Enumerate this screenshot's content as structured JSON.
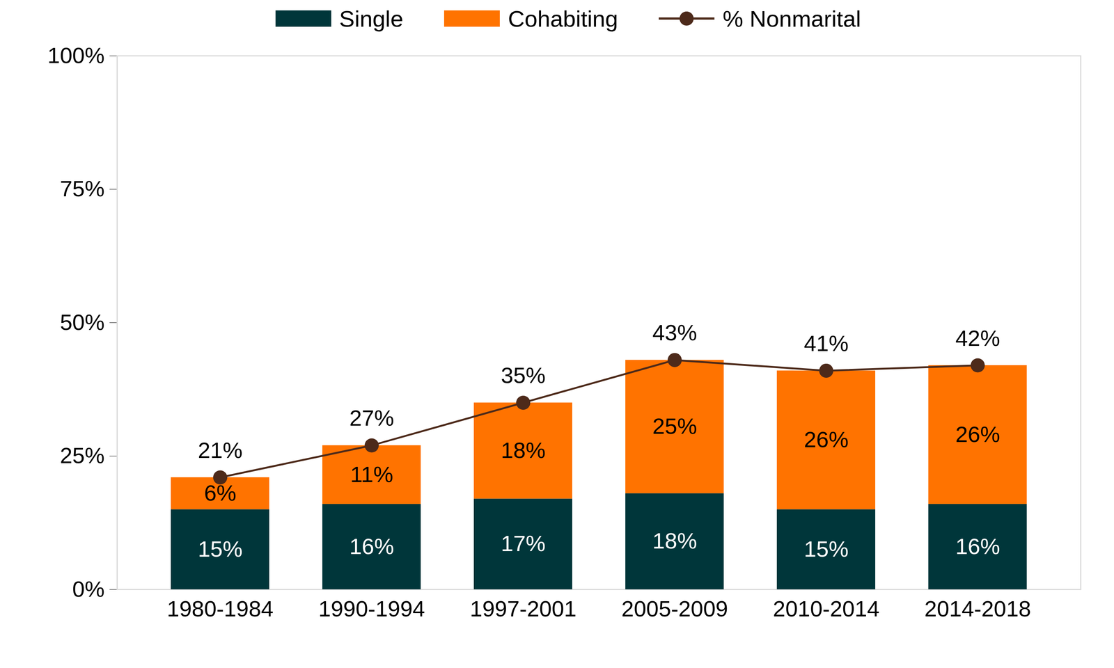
{
  "chart_data": {
    "type": "bar",
    "stacked": true,
    "data_labels": true,
    "legend": "top",
    "grid": false,
    "categories": [
      "1980-1984",
      "1990-1994",
      "1997-2001",
      "2005-2009",
      "2010-2014",
      "2014-2018"
    ],
    "series": [
      {
        "name": "Single",
        "color": "#00363a",
        "values": [
          15,
          16,
          17,
          18,
          15,
          16
        ],
        "value_labels": [
          "15%",
          "16%",
          "17%",
          "18%",
          "15%",
          "16%"
        ]
      },
      {
        "name": "Cohabiting",
        "color": "#ff7300",
        "values": [
          6,
          11,
          18,
          25,
          26,
          26
        ],
        "value_labels": [
          "6%",
          "11%",
          "18%",
          "25%",
          "26%",
          "26%"
        ]
      },
      {
        "name": "% Nonmarital",
        "type": "line",
        "color": "#4d2a1a",
        "marker": "circle",
        "values": [
          21,
          27,
          35,
          43,
          41,
          42
        ],
        "value_labels": [
          "21%",
          "27%",
          "35%",
          "43%",
          "41%",
          "42%"
        ]
      }
    ],
    "ylim": [
      0,
      100
    ],
    "yticks": [
      {
        "value": 0,
        "label": "0%"
      },
      {
        "value": 25,
        "label": "25%"
      },
      {
        "value": 50,
        "label": "50%"
      },
      {
        "value": 75,
        "label": "75%"
      },
      {
        "value": 100,
        "label": "100%"
      }
    ]
  }
}
